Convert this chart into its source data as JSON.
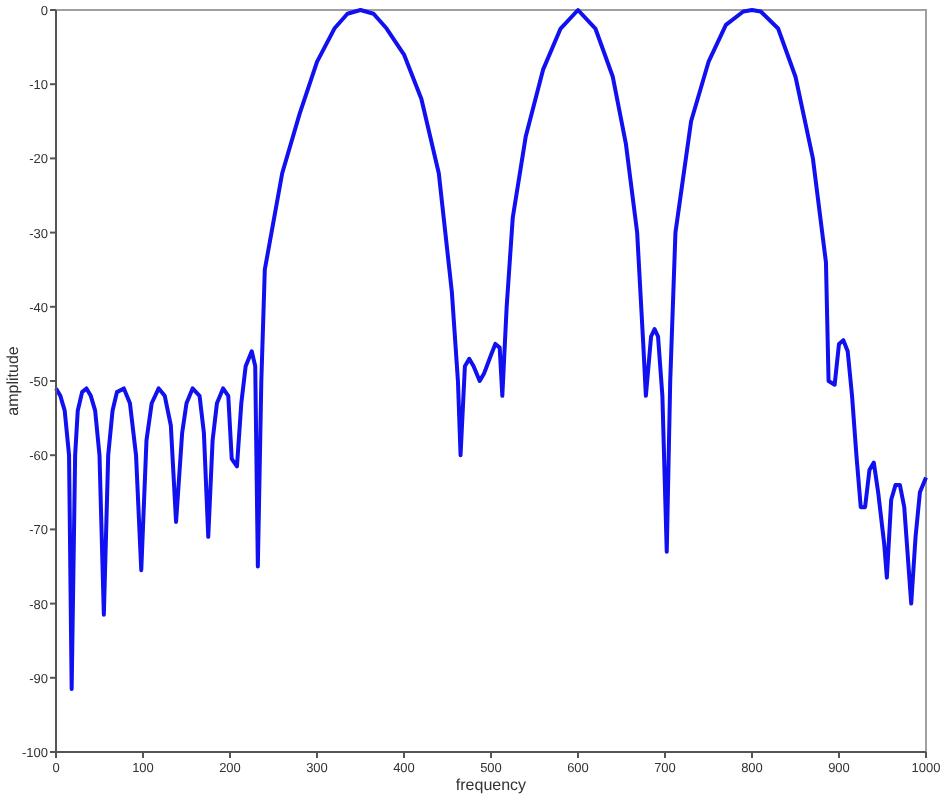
{
  "chart_data": {
    "type": "line",
    "xlabel": "frequency",
    "ylabel": "amplitude",
    "xlim": [
      0,
      1000
    ],
    "ylim": [
      -100,
      0
    ],
    "xticks": [
      0,
      100,
      200,
      300,
      400,
      500,
      600,
      700,
      800,
      900,
      1000
    ],
    "yticks": [
      -100,
      -90,
      -80,
      -70,
      -60,
      -50,
      -40,
      -30,
      -20,
      -10,
      0
    ],
    "grid": false,
    "marker": "none",
    "line_style": "solid",
    "series": [
      {
        "color": "#1010f0",
        "x": [
          0,
          5,
          10,
          15,
          18,
          22,
          25,
          30,
          35,
          40,
          45,
          50,
          55,
          60,
          65,
          70,
          78,
          85,
          92,
          98,
          104,
          110,
          118,
          125,
          132,
          138,
          145,
          150,
          157,
          165,
          170,
          175,
          180,
          185,
          192,
          198,
          202,
          208,
          213,
          218,
          225,
          229,
          232,
          236,
          240,
          260,
          280,
          300,
          320,
          335,
          350,
          365,
          380,
          400,
          420,
          440,
          455,
          462,
          465,
          470,
          475,
          480,
          487,
          492,
          500,
          505,
          510,
          513,
          518,
          525,
          540,
          560,
          580,
          600,
          620,
          640,
          655,
          668,
          675,
          678,
          684,
          688,
          692,
          697,
          702,
          706,
          712,
          730,
          750,
          770,
          790,
          800,
          810,
          830,
          850,
          870,
          885,
          888,
          895,
          900,
          905,
          910,
          915,
          920,
          925,
          930,
          935,
          940,
          945,
          952,
          955,
          960,
          965,
          970,
          975,
          983,
          988,
          993,
          1000
        ],
        "values": [
          -51,
          -52,
          -54,
          -60,
          -91.5,
          -60,
          -54,
          -51.5,
          -51,
          -52,
          -54,
          -60,
          -81.5,
          -60,
          -54,
          -51.5,
          -51,
          -53,
          -60,
          -75.5,
          -58,
          -53,
          -51,
          -52,
          -56,
          -69,
          -57,
          -53,
          -51,
          -52,
          -57,
          -71,
          -58,
          -53,
          -51,
          -52,
          -60.5,
          -61.5,
          -53,
          -48,
          -46,
          -48,
          -75,
          -50,
          -35,
          -22,
          -14,
          -7,
          -2.5,
          -0.5,
          0,
          -0.5,
          -2.5,
          -6,
          -12,
          -22,
          -38,
          -50,
          -60,
          -48,
          -47,
          -48,
          -50,
          -49,
          -46.5,
          -45,
          -45.5,
          -52,
          -40,
          -28,
          -17,
          -8,
          -2.5,
          0,
          -2.5,
          -9,
          -18,
          -30,
          -45,
          -52,
          -44,
          -43,
          -44,
          -52,
          -73,
          -50,
          -30,
          -15,
          -7,
          -2,
          -0.2,
          0,
          -0.2,
          -2.5,
          -9,
          -20,
          -34,
          -50,
          -50.5,
          -45,
          -44.5,
          -46,
          -52,
          -60,
          -67,
          -67,
          -62,
          -61,
          -65,
          -72,
          -76.5,
          -66,
          -64,
          -64,
          -67,
          -80,
          -71,
          -65,
          -63
        ]
      }
    ]
  }
}
